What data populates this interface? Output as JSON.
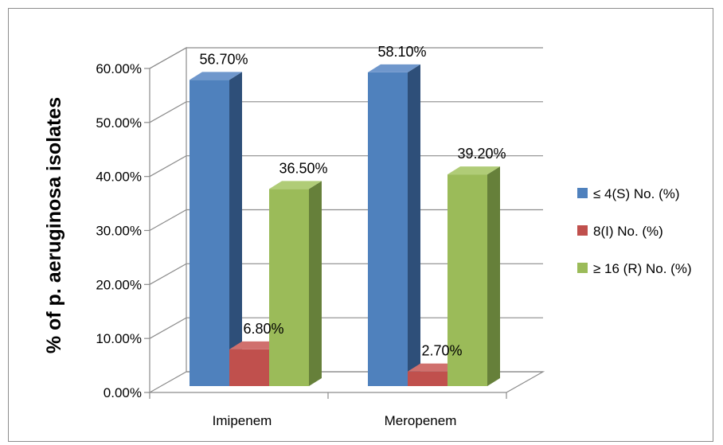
{
  "chart_data": {
    "type": "bar",
    "title": "",
    "xlabel": "",
    "ylabel": "% of p. aeruginosa isolates",
    "categories": [
      "Imipenem",
      "Meropenem"
    ],
    "series": [
      {
        "name": "≤ 4(S) No. (%)",
        "values": [
          56.7,
          58.1
        ],
        "labels": [
          "56.70%",
          "58.10%"
        ],
        "color": "#4f81bd",
        "side_color": "#2e4f79",
        "top_color": "#6f97cc"
      },
      {
        "name": "8(I) No. (%)",
        "values": [
          6.8,
          2.7
        ],
        "labels": [
          "6.80%",
          "2.70%"
        ],
        "color": "#c0504d",
        "side_color": "#7d2e2c",
        "top_color": "#d0706d"
      },
      {
        "name": "≥ 16 (R) No. (%)",
        "values": [
          36.5,
          39.2
        ],
        "labels": [
          "36.50%",
          "39.20%"
        ],
        "color": "#9bbb59",
        "side_color": "#66803a",
        "top_color": "#b0cc77"
      }
    ],
    "ylim": [
      0,
      60
    ],
    "yticks": [
      0,
      10,
      20,
      30,
      40,
      50,
      60
    ],
    "ytick_labels": [
      "0.00%",
      "10.00%",
      "20.00%",
      "30.00%",
      "40.00%",
      "50.00%",
      "60.00%"
    ],
    "grid": true,
    "legend_position": "right",
    "style": "3d-clustered-column"
  }
}
